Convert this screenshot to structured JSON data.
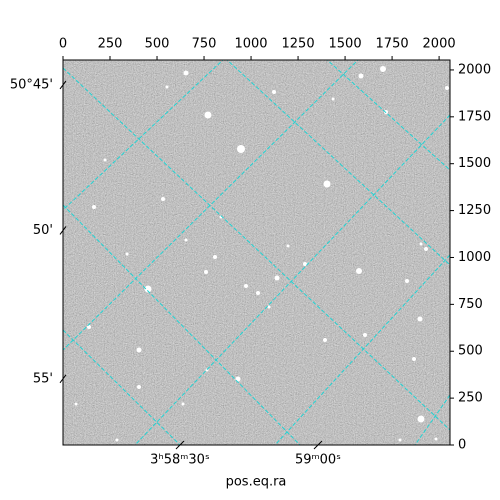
{
  "chart_data": {
    "type": "image",
    "xlabel": "pos.eq.ra",
    "xlim": [
      0,
      2058
    ],
    "ylim": [
      0,
      2053
    ],
    "xticks": [
      0,
      250,
      500,
      750,
      1000,
      1250,
      1500,
      1750,
      2000
    ],
    "yticks": [
      0,
      250,
      500,
      750,
      1000,
      1250,
      1500,
      1750,
      2000
    ],
    "world_xticks": [
      {
        "value": 622,
        "label": "3ʰ58ᵐ30ˢ"
      },
      {
        "value": 1356,
        "label": "59ᵐ00ˢ"
      }
    ],
    "world_yticks": [
      {
        "value": 1920,
        "label": "50°45'"
      },
      {
        "value": 1144,
        "label": "50'"
      },
      {
        "value": 353,
        "label": "55'"
      }
    ]
  }
}
